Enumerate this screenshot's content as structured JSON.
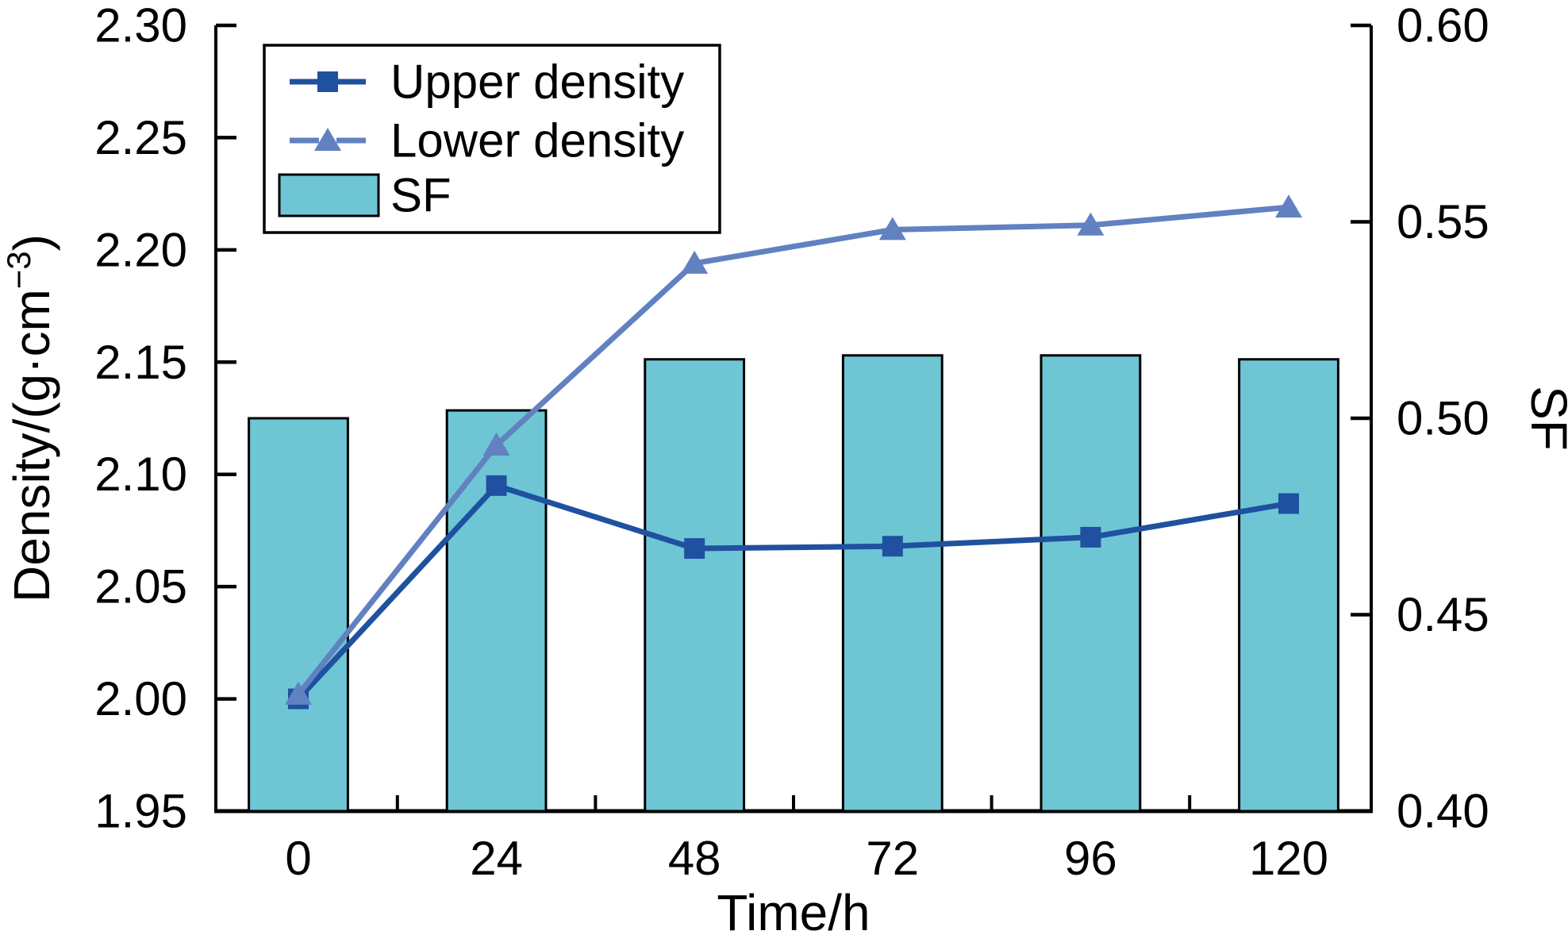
{
  "chart_data": {
    "type": "bar+line combo",
    "x": [
      0,
      24,
      48,
      72,
      96,
      120
    ],
    "x_axis": {
      "label": "Time/h",
      "tick_labels": [
        "0",
        "24",
        "48",
        "72",
        "96",
        "120"
      ],
      "range_hours": [
        -10,
        130
      ],
      "minor_ticks_at": [
        12,
        36,
        60,
        84,
        108
      ]
    },
    "y_left_axis": {
      "label": "Density/(g·cm⁻³)",
      "min": 1.95,
      "max": 2.3,
      "tick_step": 0.05,
      "tick_labels": [
        "1.95",
        "2.00",
        "2.05",
        "2.10",
        "2.15",
        "2.20",
        "2.25",
        "2.30"
      ]
    },
    "y_right_axis": {
      "label": "SF",
      "min": 0.4,
      "max": 0.6,
      "tick_step": 0.05,
      "tick_labels": [
        "0.40",
        "0.45",
        "0.50",
        "0.55",
        "0.60"
      ]
    },
    "series": [
      {
        "name": "Upper density",
        "type": "line",
        "axis": "left",
        "marker": "square",
        "color": "#1F51A0",
        "values": [
          2.0,
          2.095,
          2.067,
          2.068,
          2.072,
          2.087
        ]
      },
      {
        "name": "Lower density",
        "type": "line",
        "axis": "left",
        "marker": "triangle",
        "color": "#6181C1",
        "values": [
          2.002,
          2.113,
          2.194,
          2.209,
          2.211,
          2.219
        ]
      },
      {
        "name": "SF",
        "type": "bar",
        "axis": "right",
        "marker": "rect",
        "color": "#6EC6D5",
        "edge_color": "#000000",
        "bar_width_hours": 12,
        "values": [
          0.5,
          0.502,
          0.515,
          0.516,
          0.516,
          0.515
        ]
      }
    ],
    "legend": {
      "position": "upper-left",
      "entries": [
        "Upper density",
        "Lower density",
        "SF"
      ]
    },
    "grid": false,
    "background": "#FFFFFF"
  }
}
